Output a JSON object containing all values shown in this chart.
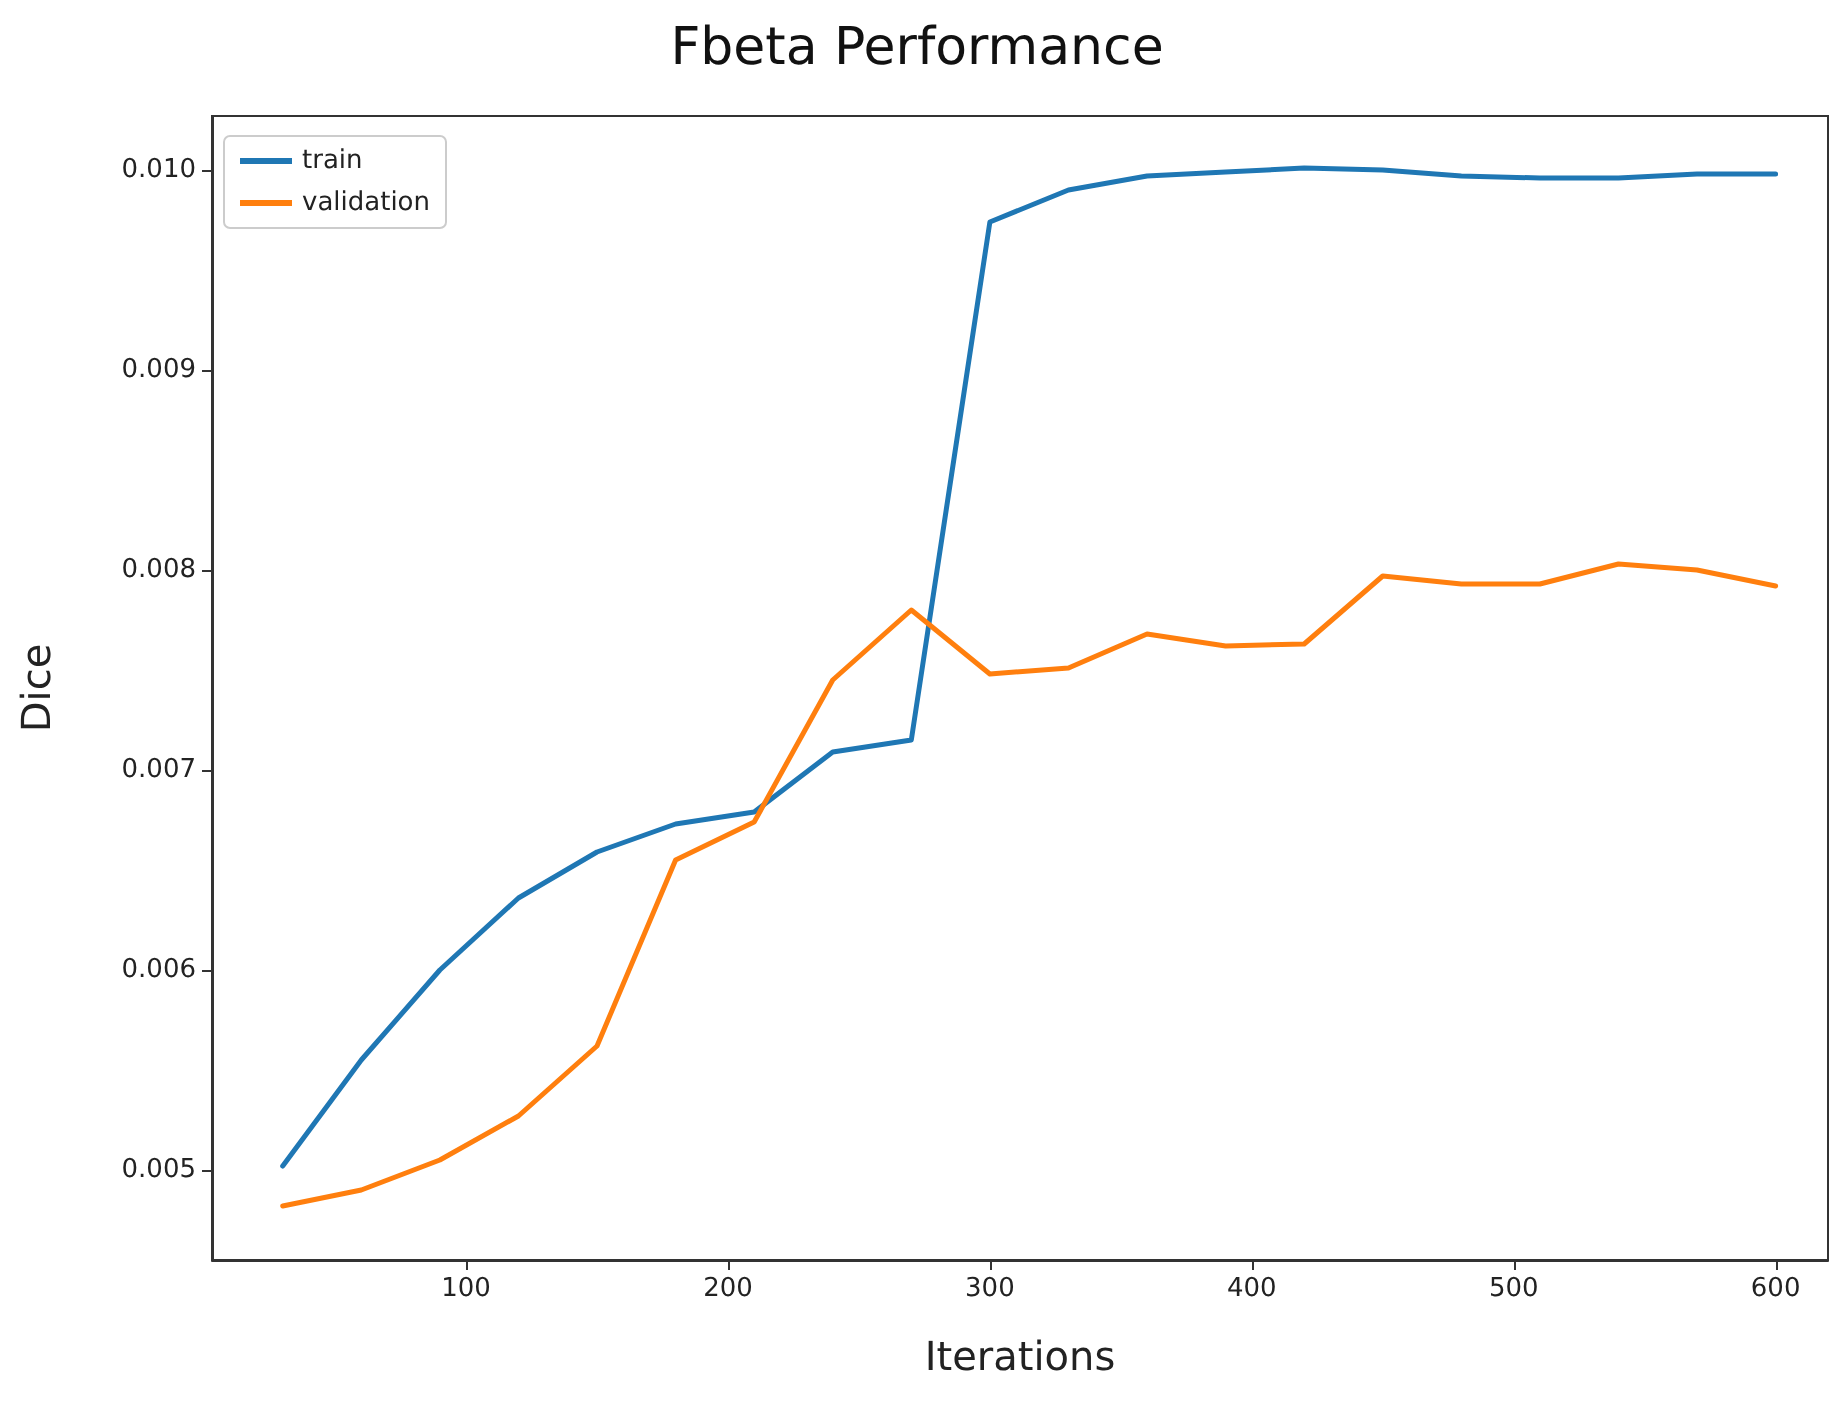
{
  "chart_data": {
    "type": "line",
    "title": "Fbeta Performance",
    "xlabel": "Iterations",
    "ylabel": "Dice",
    "x": [
      30,
      60,
      90,
      120,
      150,
      180,
      210,
      240,
      270,
      300,
      330,
      360,
      390,
      420,
      450,
      480,
      510,
      540,
      570,
      600
    ],
    "series": [
      {
        "name": "train",
        "color": "#1f77b4",
        "values": [
          0.00502,
          0.00555,
          0.006,
          0.00636,
          0.00659,
          0.00673,
          0.00679,
          0.00709,
          0.00715,
          0.00974,
          0.0099,
          0.00997,
          0.00999,
          0.01001,
          0.01,
          0.00997,
          0.00996,
          0.00996,
          0.00998,
          0.00998
        ]
      },
      {
        "name": "validation",
        "color": "#ff7f0e",
        "values": [
          0.00482,
          0.0049,
          0.00505,
          0.00527,
          0.00562,
          0.00655,
          0.00674,
          0.00745,
          0.0078,
          0.00748,
          0.00751,
          0.00768,
          0.00762,
          0.00763,
          0.00797,
          0.00793,
          0.00793,
          0.00803,
          0.008,
          0.00792
        ]
      }
    ],
    "xlim": [
      3,
      620
    ],
    "xticks": [
      100,
      200,
      300,
      400,
      500,
      600
    ],
    "ylim": [
      0.00455,
      0.01027
    ],
    "yticks": [
      {
        "value": 0.005,
        "label": "0.005"
      },
      {
        "value": 0.006,
        "label": "0.006"
      },
      {
        "value": 0.007,
        "label": "0.007"
      },
      {
        "value": 0.008,
        "label": "0.008"
      },
      {
        "value": 0.009,
        "label": "0.009"
      },
      {
        "value": 0.01,
        "label": "0.010"
      }
    ],
    "legend": "top left",
    "grid": false,
    "marker": "none",
    "line_style": "solid"
  }
}
